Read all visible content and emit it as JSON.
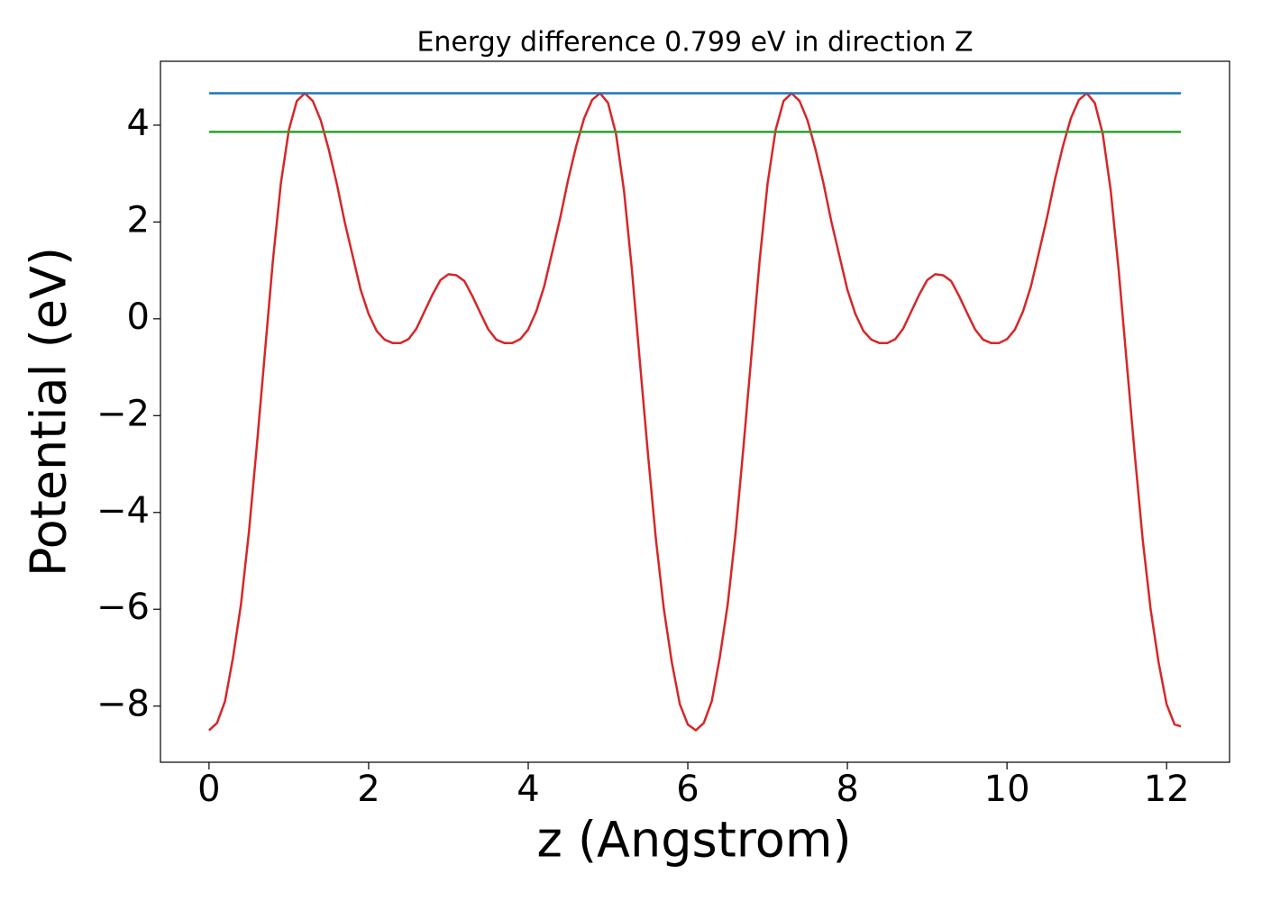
{
  "chart_data": {
    "type": "line",
    "title": "Energy difference 0.799 eV in direction Z",
    "x_label": "z (Angstrom)",
    "y_label": "Potential (eV)",
    "xlim": [
      -0.609,
      12.789
    ],
    "ylim": [
      -9.16,
      5.32
    ],
    "xticks": [
      0,
      2,
      4,
      6,
      8,
      10,
      12
    ],
    "yticks": [
      {
        "value": -8,
        "label": "−8"
      },
      {
        "value": -6,
        "label": "−6"
      },
      {
        "value": -4,
        "label": "−4"
      },
      {
        "value": -2,
        "label": "−2"
      },
      0,
      2,
      4
    ],
    "grid": false,
    "series": [
      {
        "color": "#d62728",
        "x": [
          0,
          0.1,
          0.2,
          0.3,
          0.4,
          0.5,
          0.6,
          0.7,
          0.8,
          0.9,
          1.0,
          1.1,
          1.2,
          1.3,
          1.4,
          1.5,
          1.6,
          1.7,
          1.8,
          1.9,
          2.0,
          2.1,
          2.2,
          2.3,
          2.4,
          2.5,
          2.6,
          2.7,
          2.8,
          2.9,
          3.0,
          3.1,
          3.2,
          3.3,
          3.4,
          3.5,
          3.6,
          3.7,
          3.8,
          3.9,
          4.0,
          4.1,
          4.2,
          4.3,
          4.4,
          4.5,
          4.6,
          4.7,
          4.8,
          4.9,
          5.0,
          5.1,
          5.2,
          5.3,
          5.4,
          5.5,
          5.6,
          5.7,
          5.8,
          5.9,
          6.0,
          6.1,
          6.2,
          6.3,
          6.4,
          6.5,
          6.6,
          6.7,
          6.8,
          6.9,
          7.0,
          7.1,
          7.2,
          7.3,
          7.4,
          7.5,
          7.6,
          7.7,
          7.8,
          7.9,
          8.0,
          8.1,
          8.2,
          8.3,
          8.4,
          8.5,
          8.6,
          8.7,
          8.8,
          8.9,
          9.0,
          9.1,
          9.2,
          9.3,
          9.4,
          9.5,
          9.6,
          9.7,
          9.8,
          9.9,
          10.0,
          10.1,
          10.2,
          10.3,
          10.4,
          10.5,
          10.6,
          10.7,
          10.8,
          10.9,
          11.0,
          11.1,
          11.2,
          11.3,
          11.4,
          11.5,
          11.6,
          11.7,
          11.8,
          11.9,
          12.0,
          12.1,
          12.18
        ],
        "values": [
          -8.5,
          -8.35,
          -7.9,
          -7.0,
          -5.9,
          -4.4,
          -2.6,
          -0.7,
          1.2,
          2.8,
          3.9,
          4.5,
          4.66,
          4.5,
          4.1,
          3.5,
          2.8,
          2.0,
          1.3,
          0.6,
          0.1,
          -0.25,
          -0.43,
          -0.5,
          -0.5,
          -0.42,
          -0.2,
          0.15,
          0.5,
          0.8,
          0.92,
          0.9,
          0.78,
          0.47,
          0.12,
          -0.22,
          -0.43,
          -0.5,
          -0.5,
          -0.42,
          -0.22,
          0.15,
          0.67,
          1.37,
          2.08,
          2.87,
          3.56,
          4.14,
          4.52,
          4.66,
          4.46,
          3.82,
          2.65,
          1.0,
          -0.9,
          -2.78,
          -4.55,
          -6.0,
          -7.1,
          -7.96,
          -8.38,
          -8.5,
          -8.35,
          -7.9,
          -7.0,
          -5.9,
          -4.4,
          -2.6,
          -0.7,
          1.2,
          2.8,
          3.9,
          4.5,
          4.66,
          4.5,
          4.1,
          3.5,
          2.8,
          2.0,
          1.3,
          0.6,
          0.1,
          -0.25,
          -0.43,
          -0.5,
          -0.5,
          -0.42,
          -0.2,
          0.15,
          0.5,
          0.8,
          0.92,
          0.9,
          0.78,
          0.47,
          0.12,
          -0.22,
          -0.43,
          -0.5,
          -0.5,
          -0.42,
          -0.22,
          0.15,
          0.67,
          1.37,
          2.08,
          2.87,
          3.56,
          4.14,
          4.52,
          4.66,
          4.46,
          3.82,
          2.65,
          1.0,
          -0.9,
          -2.78,
          -4.55,
          -6.0,
          -7.1,
          -7.96,
          -8.38,
          -8.42
        ]
      },
      {
        "color": "#1f77b4",
        "x": [
          0,
          12.18
        ],
        "values": [
          4.66,
          4.66
        ]
      },
      {
        "color": "#2ca02c",
        "x": [
          0,
          12.18
        ],
        "values": [
          3.861,
          3.861
        ]
      }
    ]
  }
}
